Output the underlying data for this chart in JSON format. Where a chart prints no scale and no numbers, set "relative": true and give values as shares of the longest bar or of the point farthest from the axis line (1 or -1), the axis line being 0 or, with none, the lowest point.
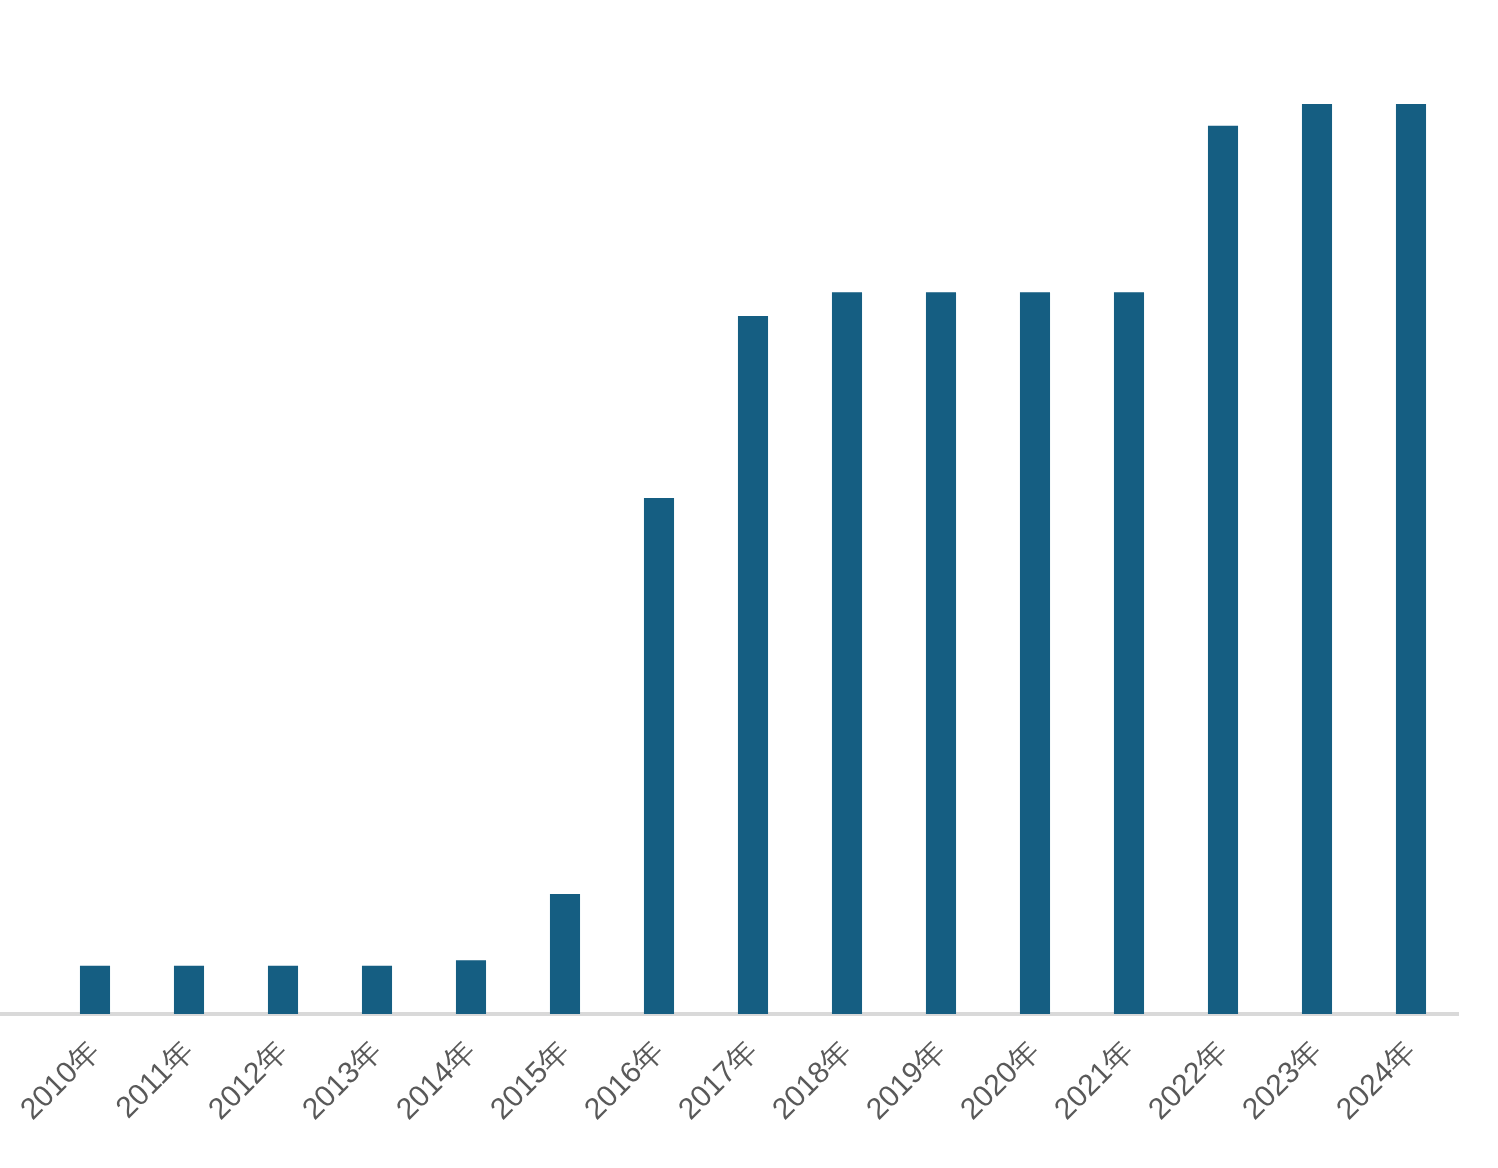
{
  "chart_data": {
    "type": "bar",
    "categories": [
      null,
      "2010年",
      "2011年",
      "2012年",
      "2013年",
      "2014年",
      "2015年",
      "2016年",
      "2017年",
      "2018年",
      "2019年",
      "2020年",
      "2021年",
      "2022年",
      "2023年",
      "2024年"
    ],
    "values": [
      null,
      0.053,
      0.053,
      0.053,
      0.053,
      0.059,
      0.132,
      0.567,
      0.767,
      0.793,
      0.793,
      0.793,
      0.793,
      0.976,
      1,
      1
    ],
    "color": "#155e82",
    "relative": true
  }
}
